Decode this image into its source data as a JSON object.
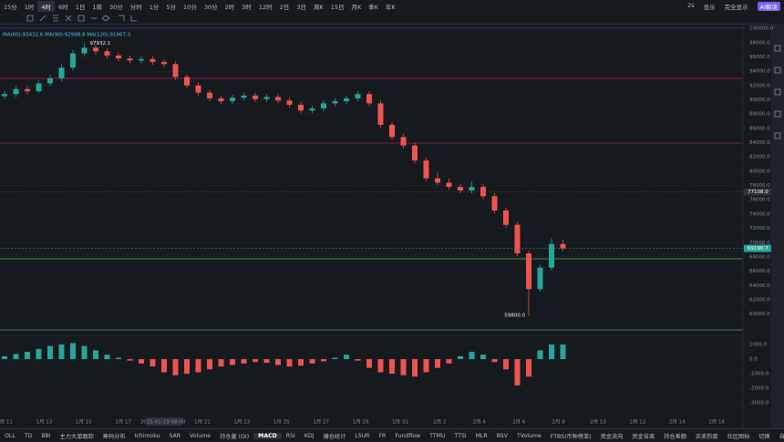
{
  "toolbar": {
    "intervals": [
      "15分",
      "1时",
      "4时",
      "6时",
      "1日",
      "1周",
      "30分",
      "分时",
      "1分",
      "5分",
      "10分",
      "30分",
      "2时",
      "3时",
      "12时",
      "2日",
      "3日",
      "周K",
      "15日",
      "月K",
      "季K",
      "年K"
    ],
    "right": [
      "2s",
      "显示",
      "完全显示",
      "AI解读"
    ]
  },
  "chart_data": {
    "type": "candlestick",
    "legend": "MA(60):93432.6  MA(90):92998.8  MA(120):91967.3",
    "colors": {
      "up": "#26a69a",
      "down": "#ef5350"
    },
    "candles": [
      [
        90500,
        91200,
        90100,
        90800
      ],
      [
        90800,
        91900,
        90400,
        91500
      ],
      [
        91500,
        91900,
        90800,
        91200
      ],
      [
        91200,
        92700,
        90900,
        92300
      ],
      [
        92300,
        93500,
        91900,
        93000
      ],
      [
        93000,
        95000,
        92600,
        94500
      ],
      [
        94500,
        97000,
        94100,
        96500
      ],
      [
        96500,
        97932.1,
        96100,
        97300
      ],
      [
        97300,
        97700,
        96300,
        96800
      ],
      [
        96800,
        97200,
        95800,
        96200
      ],
      [
        96200,
        96600,
        95400,
        95800
      ],
      [
        95800,
        96200,
        95100,
        95500
      ],
      [
        95500,
        96100,
        95100,
        95700
      ],
      [
        95700,
        96100,
        94900,
        95300
      ],
      [
        95300,
        95700,
        94600,
        95000
      ],
      [
        95000,
        95400,
        92800,
        93200
      ],
      [
        93200,
        93600,
        91600,
        92000
      ],
      [
        92000,
        92400,
        90600,
        91000
      ],
      [
        91000,
        91400,
        89800,
        90200
      ],
      [
        90200,
        90600,
        89400,
        89800
      ],
      [
        89800,
        90700,
        89400,
        90300
      ],
      [
        90300,
        91000,
        89900,
        90600
      ],
      [
        90600,
        91000,
        89700,
        90100
      ],
      [
        90100,
        90800,
        89700,
        90400
      ],
      [
        90400,
        90800,
        89500,
        89900
      ],
      [
        89900,
        90300,
        88900,
        89300
      ],
      [
        89300,
        89700,
        88100,
        88500
      ],
      [
        88500,
        89200,
        88100,
        88800
      ],
      [
        88800,
        89900,
        88400,
        89500
      ],
      [
        89500,
        90200,
        89100,
        89800
      ],
      [
        89800,
        90600,
        89400,
        90200
      ],
      [
        90200,
        91200,
        89800,
        90800
      ],
      [
        90800,
        91200,
        89100,
        89500
      ],
      [
        89500,
        89900,
        86100,
        86500
      ],
      [
        86500,
        86900,
        84400,
        84800
      ],
      [
        84800,
        85200,
        83200,
        83600
      ],
      [
        83600,
        84000,
        81100,
        81500
      ],
      [
        81500,
        81900,
        78600,
        79000
      ],
      [
        79000,
        79800,
        78000,
        78400
      ],
      [
        78400,
        79000,
        77400,
        77800
      ],
      [
        77800,
        78200,
        76900,
        77300
      ],
      [
        77300,
        78600,
        76900,
        77800
      ],
      [
        77800,
        78200,
        76100,
        76500
      ],
      [
        76500,
        76900,
        74100,
        74500
      ],
      [
        74500,
        74900,
        72100,
        72500
      ],
      [
        72500,
        72900,
        68100,
        68500
      ],
      [
        68500,
        68900,
        59800,
        63500
      ],
      [
        63500,
        66900,
        63100,
        66500
      ],
      [
        66500,
        70600,
        66100,
        69800
      ],
      [
        69800,
        70400,
        68800,
        69190.7
      ]
    ],
    "ylim": [
      57400,
      100400
    ],
    "yticks": [
      {
        "value": 60000,
        "label": "60000.0"
      },
      {
        "value": 62000,
        "label": "62000.0"
      },
      {
        "value": 64000,
        "label": "64000.0"
      },
      {
        "value": 66000,
        "label": "66000.0"
      },
      {
        "value": 68000,
        "label": "68000.0"
      },
      {
        "value": 70000,
        "label": "70000.0"
      },
      {
        "value": 72000,
        "label": "72000.0"
      },
      {
        "value": 74000,
        "label": "74000.0"
      },
      {
        "value": 76000,
        "label": "76000.0"
      },
      {
        "value": 78000,
        "label": "78000.0"
      },
      {
        "value": 80000,
        "label": "80000.0"
      },
      {
        "value": 82000,
        "label": "82000.0"
      },
      {
        "value": 84000,
        "label": "84000.0"
      },
      {
        "value": 86000,
        "label": "86000.0"
      },
      {
        "value": 88000,
        "label": "88000.0"
      },
      {
        "value": 90000,
        "label": "90000.0"
      },
      {
        "value": 92000,
        "label": "92000.0"
      },
      {
        "value": 94000,
        "label": "94000.0"
      },
      {
        "value": 96000,
        "label": "96000.0"
      },
      {
        "value": 98000,
        "label": "98000.0"
      },
      {
        "value": 100000,
        "label": "100000.0"
      }
    ],
    "annotations": [
      {
        "value": 97932.1,
        "label": "97932.1"
      },
      {
        "value": 59800,
        "label": "59800.0"
      },
      {
        "value": 77108,
        "label": "77108.0"
      },
      {
        "value": 69190.7,
        "label": "69190.7"
      }
    ],
    "dates": [
      "1月 11",
      "1月 13",
      "1月 15",
      "1月 17",
      "2025-01-19 08:00",
      "1月 21",
      "1月 23",
      "1月 25",
      "1月 27",
      "1月 29",
      "1月 31",
      "2月 2",
      "2月 4",
      "2月 6",
      "2月 8",
      "2月 10",
      "2月 12",
      "2月 14",
      "2月 16"
    ],
    "macd": {
      "values": [
        200,
        350,
        500,
        700,
        900,
        1000,
        1100,
        900,
        600,
        300,
        100,
        -100,
        -300,
        -500,
        -900,
        -1100,
        -1000,
        -900,
        -700,
        -500,
        -400,
        -300,
        -200,
        -250,
        -400,
        -500,
        -450,
        -300,
        -150,
        100,
        300,
        -100,
        -600,
        -900,
        -1000,
        -1100,
        -1200,
        -900,
        -600,
        -300,
        200,
        500,
        300,
        -200,
        -700,
        -1800,
        -1200,
        600,
        1000,
        1000
      ],
      "ylim": [
        -3800,
        1500
      ],
      "yticks": [
        {
          "value": 1000,
          "label": "1000.0"
        },
        {
          "value": 0,
          "label": "0.0"
        },
        {
          "value": -1000,
          "label": "-1000.0"
        },
        {
          "value": -2000,
          "label": "-2000.0"
        },
        {
          "value": -3000,
          "label": "-3000.0"
        }
      ]
    }
  },
  "tabs": [
    "OLL",
    "TD",
    "BBI",
    "主力大单跟踪",
    "筹码分布",
    "Ichimoku",
    "SAR",
    "Volume",
    "持仓量 (OI)",
    "MACD",
    "RSI",
    "KDJ",
    "爆仓统计",
    "LSUR",
    "FR",
    "Fundflow",
    "TTMU",
    "TTSI",
    "MLR",
    "BSV",
    "TVolume",
    "FTBS(币种榜单)",
    "资金流向",
    "资金背离",
    "持仓差额",
    "买卖热度",
    "社区图标",
    "切换",
    "自选"
  ]
}
